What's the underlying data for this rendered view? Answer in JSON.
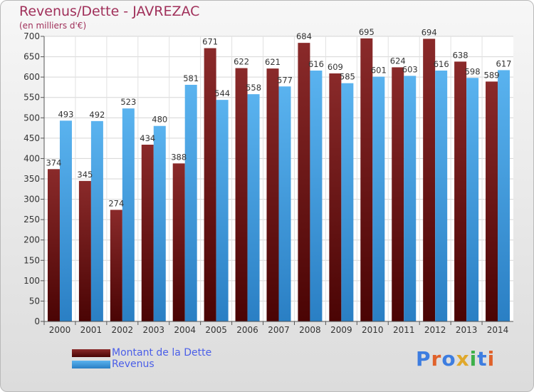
{
  "chart_data": {
    "type": "bar",
    "title": "Revenus/Dette - JAVREZAC",
    "subtitle": "(en milliers d'€)",
    "categories": [
      "2000",
      "2001",
      "2002",
      "2003",
      "2004",
      "2005",
      "2006",
      "2007",
      "2008",
      "2009",
      "2010",
      "2011",
      "2012",
      "2013",
      "2014"
    ],
    "series": [
      {
        "name": "Montant de la Dette",
        "color": "#6b1414",
        "values": [
          374,
          345,
          274,
          434,
          388,
          671,
          622,
          621,
          684,
          609,
          695,
          624,
          694,
          638,
          589
        ]
      },
      {
        "name": "Revenus",
        "color": "#3d9be0",
        "values": [
          493,
          492,
          523,
          480,
          581,
          544,
          558,
          577,
          616,
          585,
          601,
          603,
          616,
          598,
          617
        ]
      }
    ],
    "ylim": [
      0,
      700
    ],
    "yticks": [
      0,
      50,
      100,
      150,
      200,
      250,
      300,
      350,
      400,
      450,
      500,
      550,
      600,
      650,
      700
    ],
    "grid": true,
    "legend_position": "bottom-left"
  },
  "logo": {
    "text": "Proxiti",
    "colors": [
      "#3d7de0",
      "#e0622b",
      "#3d7de0",
      "#e0a82b",
      "#3db04a",
      "#3d7de0",
      "#e0622b"
    ]
  }
}
